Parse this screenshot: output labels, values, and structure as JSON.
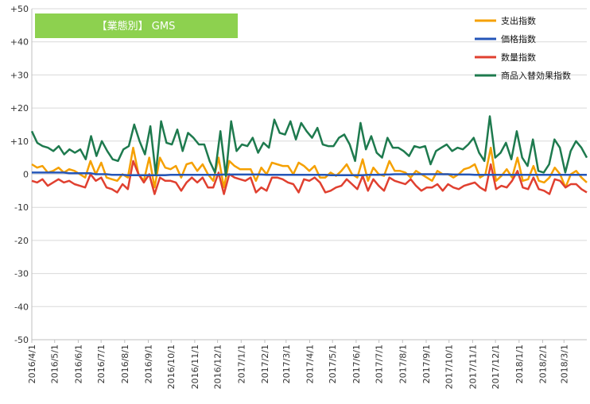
{
  "chart_data": {
    "type": "line",
    "title": "【業態別】 GMS",
    "ylim": [
      -50,
      50
    ],
    "y_ticks": [
      "+50",
      "+40",
      "+30",
      "+20",
      "+10",
      "0",
      "-10",
      "-20",
      "-30",
      "-40",
      "-50"
    ],
    "y_tick_values": [
      50,
      40,
      30,
      20,
      10,
      0,
      -10,
      -20,
      -30,
      -40,
      -50
    ],
    "x_tick_labels": [
      "2016/4/1",
      "2016/5/1",
      "2016/6/1",
      "2016/7/1",
      "2016/8/1",
      "2016/9/1",
      "2016/10/1",
      "2016/11/1",
      "2016/12/1",
      "2017/1/1",
      "2017/2/1",
      "2017/3/1",
      "2017/4/1",
      "2017/5/1",
      "2017/6/1",
      "2017/7/1",
      "2017/8/1",
      "2017/9/1",
      "2017/10/1",
      "2017/11/1",
      "2017/12/1",
      "2018/1/1",
      "2018/2/1",
      "2018/3/1"
    ],
    "x_start": "2016/4/1",
    "x_end": "2018/3/31",
    "grid": true,
    "legend_position": "top-right",
    "series": [
      {
        "name": "支出指数",
        "color": "#f5a000",
        "values": [
          3,
          2,
          2.5,
          0.5,
          1,
          2,
          0.5,
          1.5,
          1,
          0,
          -1,
          4,
          0,
          3.5,
          -1,
          -1.5,
          -2,
          0,
          -1,
          8,
          0,
          -2,
          5,
          -4,
          5,
          2,
          1.5,
          2.5,
          -1,
          3,
          3.5,
          1,
          3,
          0,
          -2,
          5,
          -4,
          4,
          2.5,
          1.5,
          1.5,
          1.5,
          -2,
          2,
          0,
          3.5,
          3,
          2.5,
          2.5,
          0,
          3.5,
          2.5,
          1,
          2.5,
          -1,
          -1,
          0.5,
          -0.5,
          1,
          3,
          0,
          -1,
          4.5,
          -2,
          2,
          0,
          -0.5,
          4,
          1,
          1,
          0.5,
          -1,
          1,
          0,
          -1,
          -2,
          1,
          0,
          0,
          -1,
          0,
          1.5,
          2,
          3,
          -1,
          0,
          8,
          -2,
          -0.5,
          1.5,
          -1,
          5,
          -2,
          -1.5,
          2.5,
          -2,
          -2.5,
          -1,
          2,
          0,
          -4,
          0,
          1,
          -1,
          -2.5
        ]
      },
      {
        "name": "価格指数",
        "color": "#2456b8",
        "values": [
          0.5,
          0.5,
          0.5,
          0.5,
          0.5,
          0.5,
          0.5,
          0.3,
          0.3,
          0.3,
          0.3,
          0.3,
          0,
          0,
          0,
          -0.2,
          -0.2,
          -0.2,
          -0.3,
          -0.3,
          -0.3,
          -0.3,
          -0.3,
          -0.3,
          -0.3,
          -0.3,
          -0.2,
          -0.2,
          -0.2,
          -0.2,
          -0.2,
          -0.2,
          -0.2,
          -0.2,
          -0.2,
          -0.2,
          -0.1,
          -0.1,
          -0.1,
          -0.1,
          -0.1,
          -0.1,
          -0.1,
          -0.1,
          -0.2,
          -0.2,
          -0.2,
          -0.2,
          -0.2,
          -0.2,
          -0.2,
          -0.2,
          -0.2,
          -0.2,
          -0.2,
          -0.2,
          -0.3,
          -0.3,
          -0.3,
          -0.3,
          -0.3,
          -0.3,
          -0.3,
          -0.2,
          -0.2,
          -0.2,
          -0.1,
          -0.1,
          0,
          0,
          0,
          0,
          0,
          0,
          0,
          0,
          0,
          0,
          0,
          -0.1,
          -0.1,
          -0.1,
          -0.1,
          -0.2,
          -0.2,
          -0.2,
          -0.2,
          -0.2,
          -0.2,
          -0.2,
          -0.2,
          -0.2,
          -0.2,
          -0.2,
          -0.2,
          -0.2,
          -0.2,
          -0.2,
          -0.2,
          -0.2,
          -0.2,
          -0.2,
          -0.2,
          -0.2,
          -0.2
        ]
      },
      {
        "name": "数量指数",
        "color": "#e04030",
        "values": [
          -2,
          -2.5,
          -1.5,
          -3.5,
          -2.5,
          -1.5,
          -2.5,
          -2,
          -3,
          -3.5,
          -4,
          0,
          -2,
          -1,
          -4,
          -4.5,
          -5.5,
          -3,
          -4.5,
          4,
          0,
          -2.5,
          0,
          -6,
          -1,
          -2,
          -2,
          -2.5,
          -5,
          -2.5,
          -1,
          -2.5,
          -1,
          -4,
          -4,
          0.5,
          -6,
          0,
          -1,
          -1.5,
          -2,
          -1,
          -5.5,
          -4,
          -5,
          -1,
          -1,
          -1.5,
          -2.5,
          -3,
          -5.5,
          -1.5,
          -2,
          -1,
          -2.5,
          -5.5,
          -5,
          -4,
          -3.5,
          -1.5,
          -3,
          -4.5,
          -0.5,
          -5,
          -1.5,
          -3.5,
          -5,
          -1,
          -2,
          -2.5,
          -3,
          -1.5,
          -3.5,
          -5,
          -4,
          -4,
          -3,
          -5,
          -3,
          -4,
          -4.5,
          -3.5,
          -3,
          -2.5,
          -4,
          -5,
          3,
          -4.5,
          -3.5,
          -4,
          -2,
          1,
          -4,
          -4.5,
          -1,
          -4.5,
          -5,
          -6,
          -1.5,
          -2,
          -4,
          -3,
          -3,
          -4.5,
          -5.5
        ]
      },
      {
        "name": "商品入替効果指数",
        "color": "#1e7a4e",
        "values": [
          13,
          9.5,
          8.5,
          8,
          7,
          8.5,
          6,
          7.5,
          6.5,
          7.5,
          4.5,
          11.5,
          5.5,
          10,
          7,
          4.5,
          4,
          7.5,
          8.5,
          15,
          10,
          6,
          14.5,
          0,
          16,
          9.5,
          9,
          13.5,
          7,
          12.5,
          11,
          9,
          9,
          4,
          0.5,
          13,
          -0.5,
          16,
          7,
          9,
          8.5,
          11,
          6.5,
          9.5,
          8,
          16.5,
          12.5,
          12,
          16,
          10.5,
          15.5,
          13,
          11,
          14,
          9,
          8.5,
          8.5,
          11,
          12,
          9,
          4,
          15.5,
          7.5,
          11.5,
          6.5,
          5,
          11,
          8,
          8,
          7,
          5.5,
          8.5,
          8,
          8.5,
          3,
          7,
          8,
          9,
          7,
          8,
          7.5,
          9,
          11,
          6.5,
          4,
          17.5,
          5,
          6.5,
          9.5,
          4.5,
          13,
          5,
          2.5,
          10.5,
          1,
          0.5,
          3,
          10.5,
          8,
          0.5,
          7,
          10,
          8,
          5
        ]
      }
    ]
  }
}
